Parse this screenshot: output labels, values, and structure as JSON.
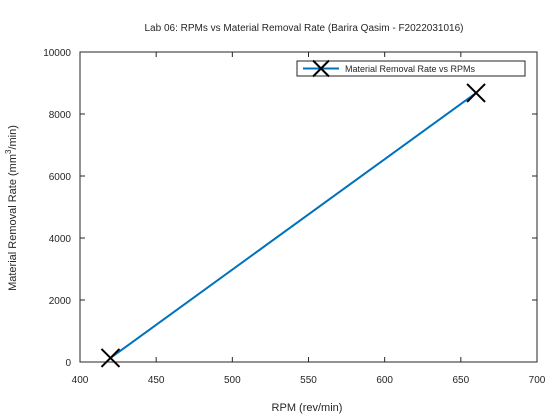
{
  "chart_data": {
    "type": "line",
    "title": "Lab 06: RPMs vs Material Removal Rate (Barira Qasim - F2022031016)",
    "xlabel": "RPM (rev/min)",
    "ylabel_main": "Material Removal Rate (mm",
    "ylabel_sup": "3",
    "ylabel_tail": "/min)",
    "xlim": [
      400,
      700
    ],
    "ylim": [
      0,
      10000
    ],
    "xticks": [
      400,
      450,
      500,
      550,
      600,
      650,
      700
    ],
    "yticks": [
      0,
      2000,
      4000,
      6000,
      8000,
      10000
    ],
    "grid": false,
    "legend_position": "top-right",
    "series": [
      {
        "name": "Material Removal Rate vs RPMs",
        "x": [
          420,
          660
        ],
        "y": [
          130,
          8680
        ],
        "color": "#0072BD",
        "marker": "x"
      }
    ]
  }
}
